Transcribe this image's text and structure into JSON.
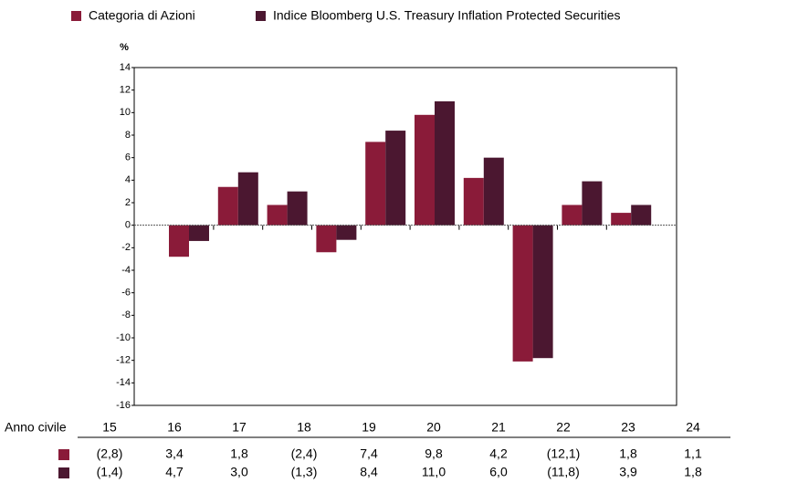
{
  "chart_data": {
    "type": "bar",
    "y_label": "%",
    "x_label": "Anno civile",
    "categories": [
      "15",
      "16",
      "17",
      "18",
      "19",
      "20",
      "21",
      "22",
      "23",
      "24"
    ],
    "series": [
      {
        "name": "Categoria di Azioni",
        "color": "#8a1b39",
        "values": [
          -2.8,
          3.4,
          1.8,
          -2.4,
          7.4,
          9.8,
          4.2,
          -12.1,
          1.8,
          1.1
        ],
        "value_labels": [
          "(2,8)",
          "3,4",
          "1,8",
          "(2,4)",
          "7,4",
          "9,8",
          "4,2",
          "(12,1)",
          "1,8",
          "1,1"
        ]
      },
      {
        "name": "Indice Bloomberg U.S. Treasury Inflation Protected Securities",
        "color": "#4b1730",
        "values": [
          -1.4,
          4.7,
          3.0,
          -1.3,
          8.4,
          11.0,
          6.0,
          -11.8,
          3.9,
          1.8
        ],
        "value_labels": [
          "(1,4)",
          "4,7",
          "3,0",
          "(1,3)",
          "8,4",
          "11,0",
          "6,0",
          "(11,8)",
          "3,9",
          "1,8"
        ]
      }
    ],
    "ylim": [
      -16,
      14
    ],
    "yticks": [
      14,
      12,
      10,
      8,
      6,
      4,
      2,
      0,
      -2,
      -4,
      -6,
      -8,
      -10,
      -12,
      -14,
      -16
    ]
  }
}
